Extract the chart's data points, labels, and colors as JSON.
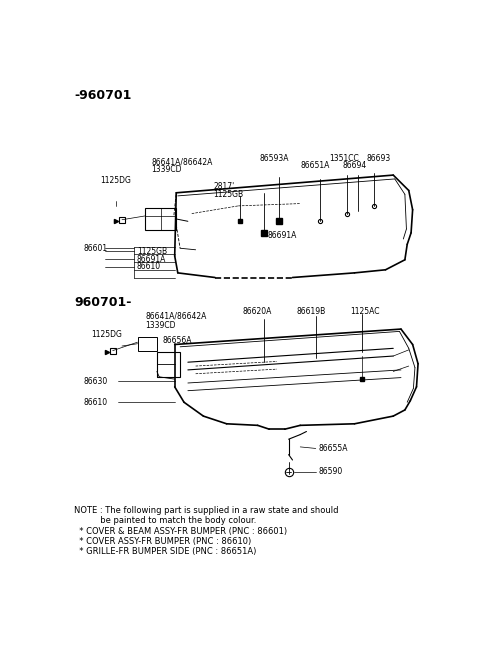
{
  "bg_color": "#ffffff",
  "line_color": "#000000",
  "title1": "-960701",
  "title2": "960701-",
  "note_lines": [
    "NOTE : The following part is supplied in a raw state and should",
    "          be painted to match the body colour.",
    "  * COVER & BEAM ASSY-FR BUMPER (PNC : 86601)",
    "  * COVER ASSY-FR BUMPER (PNC : 86610)",
    "  * GRILLE-FR BUMPER SIDE (PNC : 86651A)"
  ]
}
